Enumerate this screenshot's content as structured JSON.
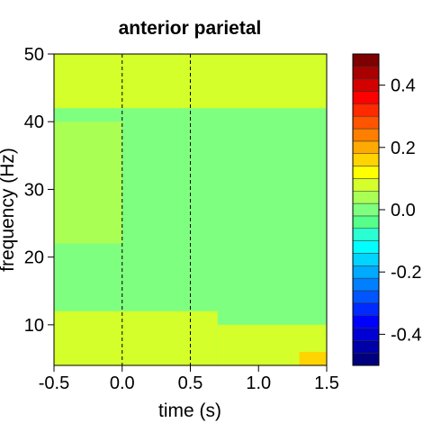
{
  "chart_data": {
    "type": "heatmap",
    "title": "anterior parietal",
    "xlabel": "time (s)",
    "ylabel": "frequency (Hz)",
    "xlim": [
      -0.5,
      1.5
    ],
    "ylim": [
      4,
      50
    ],
    "x_ticks": [
      -0.5,
      0.0,
      0.5,
      1.0,
      1.5
    ],
    "x_tick_labels": [
      "-0.5",
      "0.0",
      "0.5",
      "1.0",
      "1.5"
    ],
    "y_ticks": [
      10,
      20,
      30,
      40,
      50
    ],
    "y_tick_labels": [
      "10",
      "20",
      "30",
      "40",
      "50"
    ],
    "event_markers_x": [
      0.0,
      0.5
    ],
    "colorbar": {
      "range": [
        -0.5,
        0.5
      ],
      "ticks": [
        -0.4,
        -0.2,
        0.0,
        0.2,
        0.4
      ],
      "tick_labels": [
        "-0.4",
        "-0.2",
        "0.0",
        "0.2",
        "0.4"
      ],
      "colors": [
        "#00007F",
        "#0000A9",
        "#0000D4",
        "#0000FF",
        "#002AFF",
        "#0055FF",
        "#007FFF",
        "#00AAFF",
        "#00D4FF",
        "#00FFFF",
        "#2AFFD4",
        "#55FF89",
        "#7FFF7F",
        "#AAFF55",
        "#D4FF2A",
        "#FFFF00",
        "#FFD400",
        "#FFAA00",
        "#FF7F00",
        "#FF5500",
        "#FF2A00",
        "#FF0000",
        "#D40000",
        "#A90000",
        "#7F0000"
      ]
    },
    "region_values": [
      {
        "t": [
          -0.5,
          1.5
        ],
        "f": [
          4,
          50
        ],
        "value": 0.0
      },
      {
        "t": [
          -0.5,
          1.5
        ],
        "f": [
          42,
          50
        ],
        "value": 0.06
      },
      {
        "t": [
          -0.5,
          0.0
        ],
        "f": [
          22,
          40
        ],
        "value": 0.04
      },
      {
        "t": [
          -0.5,
          0.7
        ],
        "f": [
          4,
          12
        ],
        "value": 0.06
      },
      {
        "t": [
          0.7,
          1.5
        ],
        "f": [
          4,
          10
        ],
        "value": 0.07
      },
      {
        "t": [
          1.3,
          1.5
        ],
        "f": [
          4,
          6
        ],
        "value": 0.15
      }
    ]
  }
}
